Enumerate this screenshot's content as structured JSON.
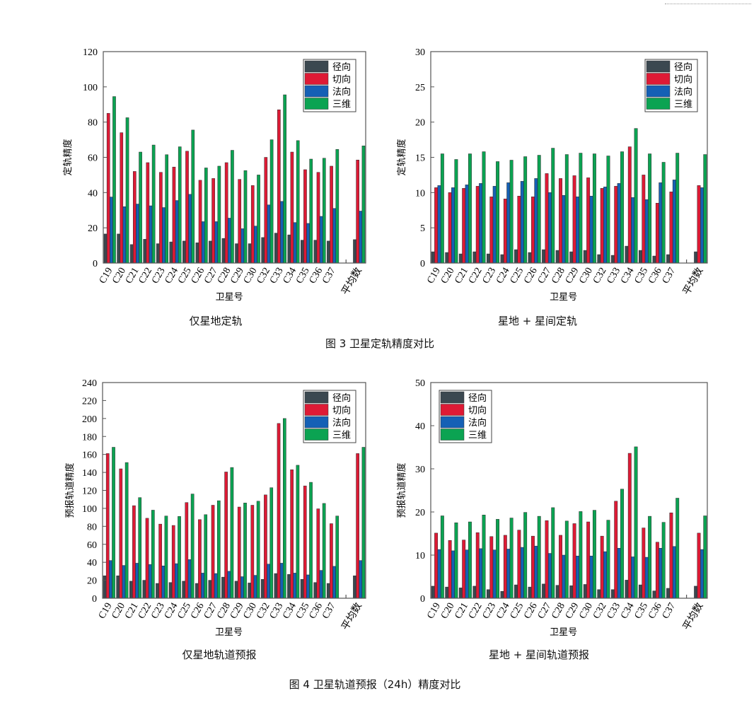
{
  "figure3": {
    "caption": "图 3    卫星定轨精度对比",
    "sub_left": "仅星地定轨",
    "sub_right": "星地 + 星间定轨"
  },
  "figure4": {
    "caption": "图 4    卫星轨道预报（24h）精度对比",
    "sub_left": "仅星地轨道预报",
    "sub_right": "星地 + 星间轨道预报"
  },
  "colors": {
    "径向": "#3b4850",
    "切向": "#de1a35",
    "法向": "#1560b5",
    "三维": "#0ba352"
  },
  "chart_data": [
    {
      "type": "bar",
      "title": "仅星地定轨",
      "xlabel": "卫星号",
      "ylabel": "定轨精度",
      "ylim": [
        0,
        120
      ],
      "yticks": [
        0,
        20,
        40,
        60,
        80,
        100,
        120
      ],
      "legend": "top-right",
      "categories": [
        "C19",
        "C20",
        "C21",
        "C22",
        "C23",
        "C24",
        "C25",
        "C26",
        "C27",
        "C28",
        "C29",
        "C30",
        "C32",
        "C33",
        "C34",
        "C35",
        "C36",
        "C37",
        "平均数"
      ],
      "series": [
        {
          "name": "径向",
          "values": [
            16.5,
            16.5,
            10.5,
            13.5,
            11,
            12,
            12.5,
            11.5,
            12.5,
            14,
            11,
            11,
            14.5,
            17,
            16,
            13,
            13,
            12.5,
            13.3
          ]
        },
        {
          "name": "切向",
          "values": [
            85,
            74,
            52,
            57,
            51.5,
            54.5,
            63.5,
            47,
            48,
            57,
            47.5,
            44,
            60,
            87,
            63,
            53,
            51.5,
            55,
            58.5
          ]
        },
        {
          "name": "法向",
          "values": [
            37.5,
            32,
            33.5,
            32.5,
            31.5,
            35.5,
            39,
            23.5,
            23.5,
            25.5,
            19.5,
            21,
            33,
            35,
            23,
            22.5,
            26.5,
            31,
            29.5
          ]
        },
        {
          "name": "三维",
          "values": [
            94.5,
            82.5,
            63,
            67,
            61.5,
            66,
            75.5,
            54,
            55,
            64,
            52.5,
            50,
            70,
            95.5,
            69.5,
            59,
            59.5,
            64.5,
            66.5
          ]
        }
      ]
    },
    {
      "type": "bar",
      "title": "星地 + 星间定轨",
      "xlabel": "卫星号",
      "ylabel": "定轨精度",
      "ylim": [
        0,
        30
      ],
      "yticks": [
        0,
        5,
        10,
        15,
        20,
        25,
        30
      ],
      "legend": "top-right",
      "categories": [
        "C19",
        "C20",
        "C21",
        "C22",
        "C23",
        "C24",
        "C25",
        "C26",
        "C27",
        "C28",
        "C29",
        "C30",
        "C32",
        "C33",
        "C34",
        "C35",
        "C36",
        "C37",
        "平均数"
      ],
      "series": [
        {
          "name": "径向",
          "values": [
            1.6,
            1.5,
            1.3,
            1.6,
            1.3,
            1.2,
            1.9,
            1.5,
            1.9,
            1.8,
            1.6,
            1.8,
            1.2,
            1.1,
            2.4,
            1.8,
            1.0,
            1.2,
            1.6
          ]
        },
        {
          "name": "切向",
          "values": [
            10.7,
            10.0,
            10.6,
            10.9,
            9.4,
            9.1,
            9.5,
            9.4,
            12.7,
            12.0,
            12.4,
            12.1,
            10.6,
            10.9,
            16.5,
            12.5,
            8.5,
            10.1,
            11.0
          ]
        },
        {
          "name": "法向",
          "values": [
            11.0,
            10.7,
            11.1,
            11.3,
            10.9,
            11.4,
            11.6,
            12.0,
            10.0,
            9.6,
            9.4,
            9.5,
            10.8,
            11.3,
            9.3,
            9.0,
            11.4,
            11.8,
            10.7
          ]
        },
        {
          "name": "三维",
          "values": [
            15.5,
            14.7,
            15.5,
            15.8,
            14.4,
            14.6,
            15.1,
            15.3,
            16.3,
            15.4,
            15.6,
            15.5,
            15.2,
            15.8,
            19.1,
            15.5,
            14.3,
            15.6,
            15.4
          ]
        }
      ]
    },
    {
      "type": "bar",
      "title": "仅星地轨道预报",
      "xlabel": "卫星号",
      "ylabel": "预报轨道精度",
      "ylim": [
        0,
        240
      ],
      "yticks": [
        0,
        20,
        40,
        60,
        80,
        100,
        120,
        140,
        160,
        180,
        200,
        220,
        240
      ],
      "legend": "top-right",
      "categories": [
        "C19",
        "C20",
        "C21",
        "C22",
        "C23",
        "C24",
        "C25",
        "C26",
        "C27",
        "C28",
        "C29",
        "C30",
        "C32",
        "C33",
        "C34",
        "C35",
        "C36",
        "C37",
        "平均数"
      ],
      "series": [
        {
          "name": "径向",
          "values": [
            25,
            25,
            19,
            20,
            16.5,
            17.5,
            19,
            16.5,
            20,
            23.5,
            19,
            17,
            21,
            27.5,
            26.5,
            21,
            17.5,
            16.5,
            25
          ]
        },
        {
          "name": "切向",
          "values": [
            161,
            144,
            103,
            89,
            82.5,
            81,
            106.5,
            87.5,
            103.5,
            140.5,
            101.5,
            103.5,
            115,
            194.5,
            143,
            125,
            99.5,
            83,
            161
          ]
        },
        {
          "name": "法向",
          "values": [
            42,
            36.5,
            39,
            37.5,
            36,
            38.5,
            43,
            28,
            27.5,
            30,
            24,
            25.5,
            38,
            39,
            28,
            26,
            31,
            35.5,
            42
          ]
        },
        {
          "name": "三维",
          "values": [
            168,
            151,
            112,
            98,
            91.5,
            91,
            116,
            93,
            108.5,
            145.5,
            106,
            108,
            123,
            200,
            148,
            129,
            105.5,
            91.5,
            168
          ]
        }
      ]
    },
    {
      "type": "bar",
      "title": "星地 + 星间轨道预报",
      "xlabel": "卫星号",
      "ylabel": "预报轨道精度",
      "ylim": [
        0,
        50
      ],
      "yticks": [
        0,
        10,
        20,
        30,
        40,
        50
      ],
      "legend": "top-left",
      "categories": [
        "C19",
        "C20",
        "C21",
        "C22",
        "C23",
        "C24",
        "C25",
        "C26",
        "C27",
        "C28",
        "C29",
        "C30",
        "C32",
        "C33",
        "C34",
        "C35",
        "C36",
        "C37",
        "平均数"
      ],
      "series": [
        {
          "name": "径向",
          "values": [
            2.8,
            2.6,
            2.4,
            2.8,
            2.0,
            1.6,
            3.1,
            2.6,
            3.3,
            3.0,
            2.9,
            3.2,
            2.0,
            2.0,
            4.2,
            3.1,
            1.7,
            2.3,
            2.8
          ]
        },
        {
          "name": "切向",
          "values": [
            15.1,
            13.4,
            13.5,
            15.2,
            14.3,
            14.6,
            15.8,
            14.4,
            18.0,
            14.6,
            17.3,
            17.7,
            14.4,
            22.5,
            33.6,
            16.3,
            13.0,
            19.8,
            15.1
          ]
        },
        {
          "name": "法向",
          "values": [
            11.3,
            11.0,
            11.2,
            11.5,
            11.2,
            11.4,
            11.8,
            12.1,
            10.4,
            10.0,
            9.8,
            9.8,
            10.8,
            11.6,
            9.6,
            9.5,
            11.6,
            12.0,
            11.3
          ]
        },
        {
          "name": "三维",
          "values": [
            19.1,
            17.5,
            17.7,
            19.3,
            18.3,
            18.6,
            19.9,
            19.0,
            21.0,
            17.9,
            20.1,
            20.4,
            18.1,
            25.3,
            35.1,
            19.0,
            17.6,
            23.2,
            19.1
          ]
        }
      ]
    }
  ]
}
